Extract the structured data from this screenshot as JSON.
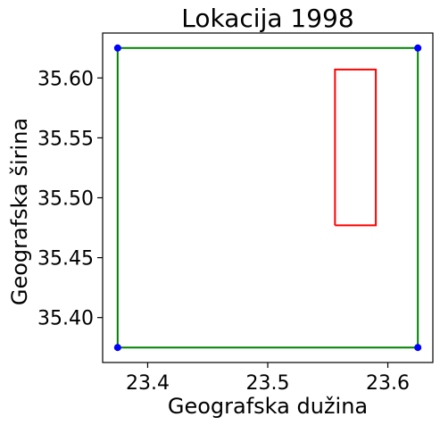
{
  "chart_data": {
    "type": "scatter",
    "title": "Lokacija 1998",
    "xlabel": "Geografska dužina",
    "ylabel": "Geografska širina",
    "xlim": [
      23.3625,
      23.6375
    ],
    "ylim": [
      35.3625,
      35.6375
    ],
    "xticks": [
      23.4,
      23.5,
      23.6
    ],
    "xtick_labels": [
      "23.4",
      "23.5",
      "23.6"
    ],
    "yticks": [
      35.4,
      35.45,
      35.5,
      35.55,
      35.6
    ],
    "ytick_labels": [
      "35.40",
      "35.45",
      "35.50",
      "35.55",
      "35.60"
    ],
    "grid": false,
    "outer_rectangle": {
      "x": [
        23.375,
        23.625
      ],
      "y": [
        35.375,
        35.625
      ],
      "color": "#008000"
    },
    "inner_rectangle": {
      "x": [
        23.556,
        23.59
      ],
      "y": [
        35.477,
        35.607
      ],
      "color": "#ff0000"
    },
    "corner_points": {
      "x": [
        23.375,
        23.625,
        23.375,
        23.625
      ],
      "y": [
        35.625,
        35.625,
        35.375,
        35.375
      ],
      "color": "#0000ff"
    }
  }
}
